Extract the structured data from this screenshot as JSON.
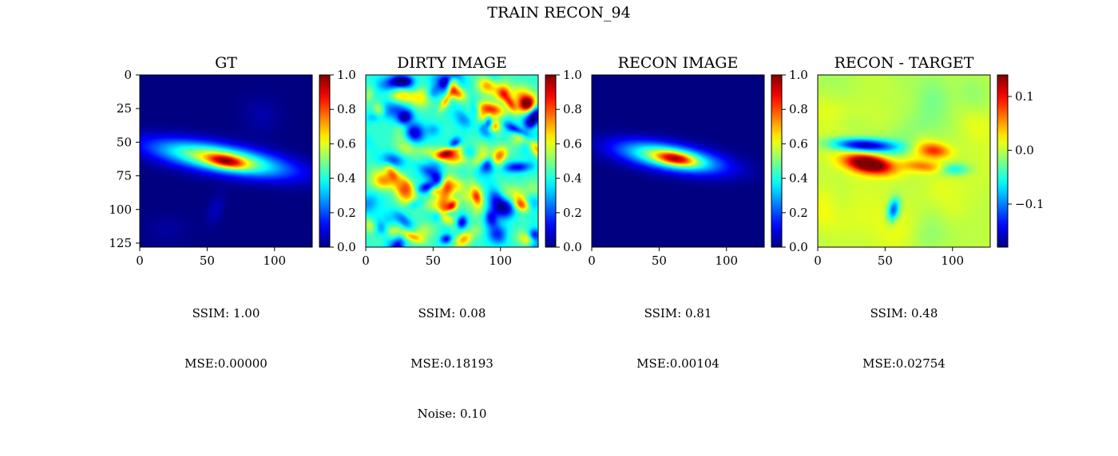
{
  "figure": {
    "suptitle": "TRAIN RECON_94"
  },
  "chart_data": [
    {
      "type": "heatmap",
      "title": "GT",
      "x_ticks": [
        0,
        50,
        100
      ],
      "y_ticks": [
        0,
        25,
        50,
        75,
        100,
        125
      ],
      "xlim": [
        0,
        128
      ],
      "ylim": [
        128,
        0
      ],
      "xlabel_lines": [
        "SSIM: 1.00",
        "MSE:0.00000"
      ],
      "colorbar": {
        "range": [
          0.0,
          1.0
        ],
        "ticks": [
          "0.0",
          "0.2",
          "0.4",
          "0.6",
          "0.8",
          "1.0"
        ],
        "colormap": "jet"
      }
    },
    {
      "type": "heatmap",
      "title": "DIRTY IMAGE",
      "x_ticks": [
        0,
        50,
        100
      ],
      "xlim": [
        0,
        128
      ],
      "xlabel_lines": [
        "SSIM: 0.08",
        "MSE:0.18193",
        "Noise: 0.10"
      ],
      "colorbar": {
        "range": [
          0.0,
          1.0
        ],
        "ticks": [
          "0.0",
          "0.2",
          "0.4",
          "0.6",
          "0.8",
          "1.0"
        ],
        "colormap": "jet"
      }
    },
    {
      "type": "heatmap",
      "title": "RECON IMAGE",
      "x_ticks": [
        0,
        50,
        100
      ],
      "xlim": [
        0,
        128
      ],
      "xlabel_lines": [
        "SSIM: 0.81",
        "MSE:0.00104"
      ],
      "colorbar": {
        "range": [
          0.0,
          1.0
        ],
        "ticks": [
          "0.0",
          "0.2",
          "0.4",
          "0.6",
          "0.8",
          "1.0"
        ],
        "colormap": "jet"
      }
    },
    {
      "type": "heatmap",
      "title": "RECON - TARGET",
      "x_ticks": [
        0,
        50,
        100
      ],
      "xlim": [
        0,
        128
      ],
      "xlabel_lines": [
        "SSIM: 0.48",
        "MSE:0.02754"
      ],
      "colorbar": {
        "range": [
          -0.18,
          0.14
        ],
        "ticks": [
          "0.1",
          "0.0",
          "−0.1"
        ],
        "tick_values": [
          0.1,
          0.0,
          -0.1
        ],
        "colormap": "jet"
      }
    }
  ]
}
